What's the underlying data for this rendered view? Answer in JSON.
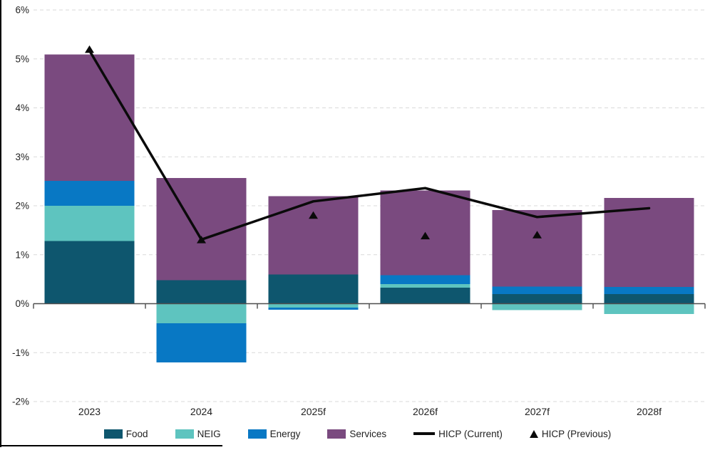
{
  "chart_data": {
    "type": "bar",
    "subtype": "stacked-bar-with-line-overlay",
    "title": "",
    "categories": [
      "2023",
      "2024",
      "2025f",
      "2026f",
      "2027f",
      "2028f"
    ],
    "series": [
      {
        "name": "Food",
        "type": "bar",
        "color": "#0e566e",
        "values": [
          1.28,
          0.48,
          0.6,
          0.33,
          0.2,
          0.2
        ]
      },
      {
        "name": "NEIG",
        "type": "bar",
        "color": "#5ec4bf",
        "values": [
          0.72,
          -0.4,
          -0.08,
          0.07,
          -0.13,
          -0.21
        ]
      },
      {
        "name": "Energy",
        "type": "bar",
        "color": "#0878c4",
        "values": [
          0.51,
          -0.8,
          -0.04,
          0.18,
          0.15,
          0.14
        ]
      },
      {
        "name": "Services",
        "type": "bar",
        "color": "#7a4a7f",
        "values": [
          2.58,
          2.09,
          1.6,
          1.73,
          1.56,
          1.82
        ]
      },
      {
        "name": "HICP (Current)",
        "type": "line",
        "color": "#0a0a0a",
        "values": [
          5.17,
          1.31,
          2.09,
          2.36,
          1.77,
          1.95
        ]
      },
      {
        "name": "HICP (Previous)",
        "type": "triangle-marker",
        "color": "#0a0a0a",
        "values": [
          5.19,
          1.3,
          1.8,
          1.38,
          1.4,
          null
        ]
      }
    ],
    "ylim": [
      -2,
      6
    ],
    "yticks": [
      {
        "label": "6%",
        "value": 6
      },
      {
        "label": "5%",
        "value": 5
      },
      {
        "label": "4%",
        "value": 4
      },
      {
        "label": "3%",
        "value": 3
      },
      {
        "label": "2%",
        "value": 2
      },
      {
        "label": "1%",
        "value": 1
      },
      {
        "label": "0%",
        "value": 0
      },
      {
        "label": "-1%",
        "value": -1
      },
      {
        "label": "-2%",
        "value": -2
      }
    ],
    "xlabel": "",
    "ylabel": "",
    "grid": true,
    "gridline_color": "#d9d9d9",
    "zero_axis_color": "#4d4d4d",
    "text_color": "#1f1f1f",
    "background_color": "#ffffff",
    "legend_position": "bottom"
  }
}
